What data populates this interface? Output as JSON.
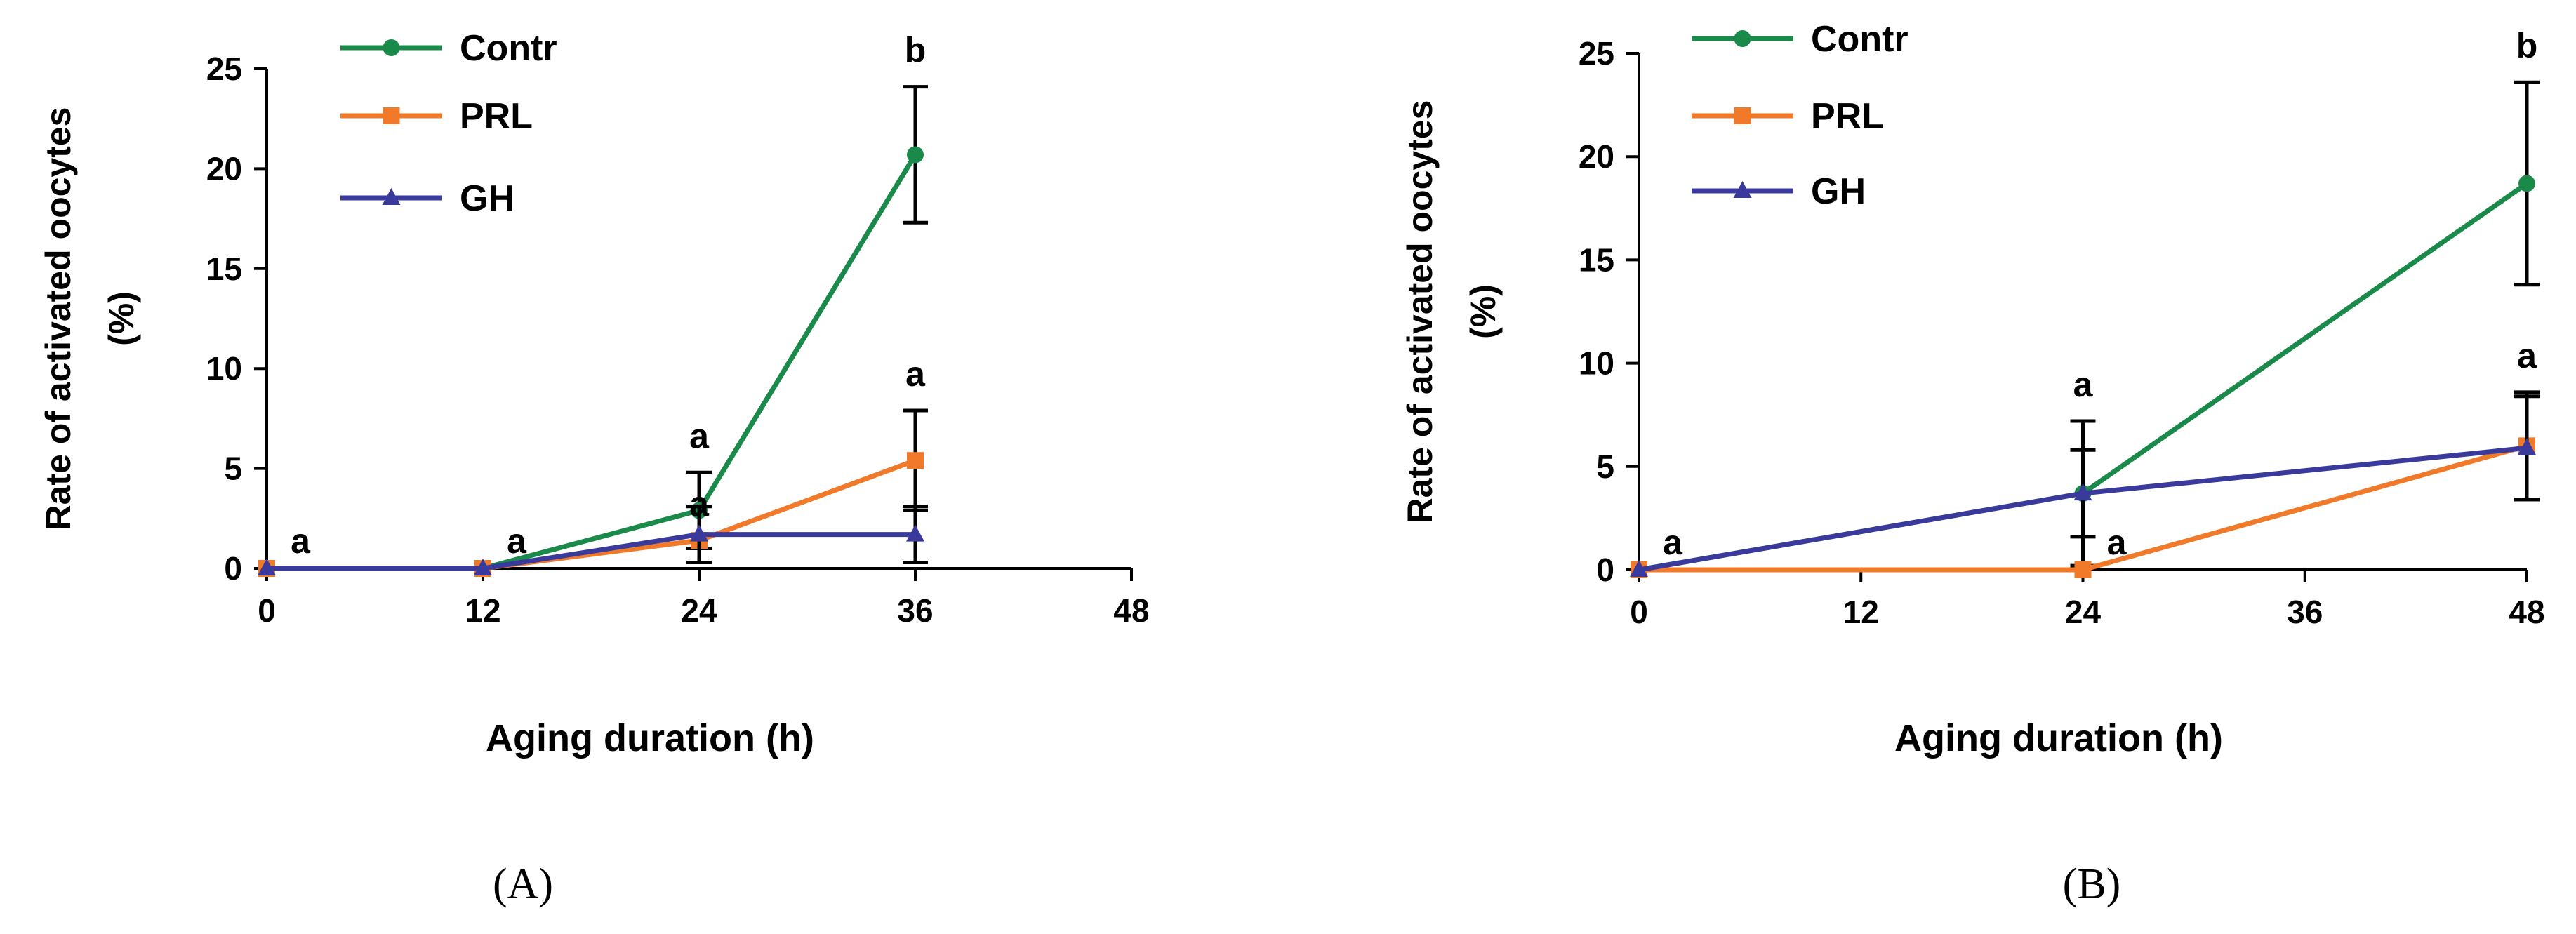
{
  "colors": {
    "Contr": "#1a8a4a",
    "PRL": "#f07a2a",
    "GH": "#3a3a9c",
    "axis": "#000000"
  },
  "chart_data": [
    {
      "type": "line",
      "caption": "(A)",
      "xlabel": "Aging duration (h)",
      "ylabel_line1": "Rate of activated oocytes",
      "ylabel_line2": "(%)",
      "xlim": [
        0,
        48
      ],
      "ylim": [
        0,
        25
      ],
      "xticks": [
        0,
        12,
        24,
        36,
        48
      ],
      "yticks": [
        0,
        5,
        10,
        15,
        20,
        25
      ],
      "legend": [
        "Contr",
        "PRL",
        "GH"
      ],
      "series": [
        {
          "name": "Contr",
          "marker": "circle",
          "x": [
            0,
            12,
            24,
            36
          ],
          "y": [
            0,
            0,
            2.9,
            20.7
          ],
          "err": [
            0,
            0,
            1.9,
            3.4
          ]
        },
        {
          "name": "PRL",
          "marker": "square",
          "x": [
            0,
            12,
            24,
            36
          ],
          "y": [
            0,
            0,
            1.4,
            5.4
          ],
          "err": [
            0,
            0,
            0,
            2.5
          ]
        },
        {
          "name": "GH",
          "marker": "triangle",
          "x": [
            0,
            12,
            24,
            36
          ],
          "y": [
            0,
            0,
            1.7,
            1.7
          ],
          "err": [
            0,
            0,
            1.4,
            1.4
          ]
        }
      ],
      "annotations": [
        {
          "x": 0,
          "y": 0,
          "label": "a"
        },
        {
          "x": 12,
          "y": 0,
          "label": "a"
        },
        {
          "x": 24,
          "y": 4.8,
          "label": "a"
        },
        {
          "x": 24,
          "y": 1.4,
          "label": "a"
        },
        {
          "x": 36,
          "y": 24.1,
          "label": "b"
        },
        {
          "x": 36,
          "y": 7.9,
          "label": "a"
        }
      ]
    },
    {
      "type": "line",
      "caption": "(B)",
      "xlabel": "Aging duration (h)",
      "ylabel_line1": "Rate of activated oocytes",
      "ylabel_line2": "(%)",
      "xlim": [
        0,
        48
      ],
      "ylim": [
        0,
        25
      ],
      "xticks": [
        0,
        12,
        24,
        36,
        48
      ],
      "yticks": [
        0,
        5,
        10,
        15,
        20,
        25
      ],
      "legend": [
        "Contr",
        "PRL",
        "GH"
      ],
      "series": [
        {
          "name": "Contr",
          "marker": "circle",
          "x": [
            0,
            24,
            48
          ],
          "y": [
            0,
            3.7,
            18.7
          ],
          "err": [
            0,
            3.5,
            4.9
          ]
        },
        {
          "name": "PRL",
          "marker": "square",
          "x": [
            0,
            24,
            48
          ],
          "y": [
            0,
            0,
            6.0
          ],
          "err": [
            0,
            0,
            2.6
          ]
        },
        {
          "name": "GH",
          "marker": "triangle",
          "x": [
            0,
            24,
            48
          ],
          "y": [
            0,
            3.7,
            5.9
          ],
          "err": [
            0,
            2.1,
            2.5
          ]
        }
      ],
      "annotations": [
        {
          "x": 0,
          "y": 0,
          "label": "a"
        },
        {
          "x": 24,
          "y": 7.2,
          "label": "a"
        },
        {
          "x": 24,
          "y": 0,
          "label": "a"
        },
        {
          "x": 48,
          "y": 23.6,
          "label": "b"
        },
        {
          "x": 48,
          "y": 8.6,
          "label": "a"
        }
      ]
    }
  ]
}
